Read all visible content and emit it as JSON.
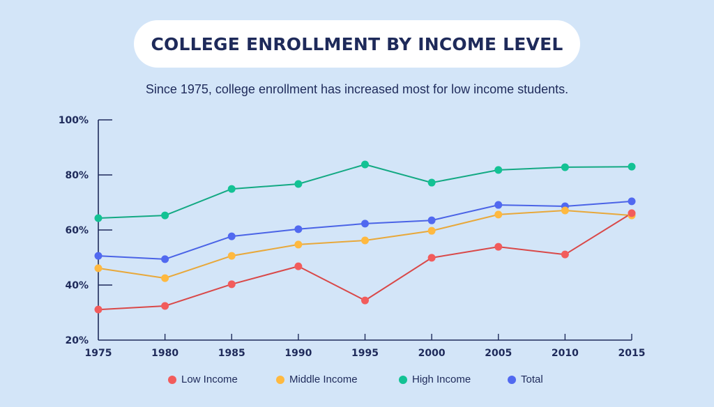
{
  "header": {
    "title": "COLLEGE ENROLLMENT BY INCOME LEVEL",
    "subtitle": "Since 1975, college enrollment has increased most for low income students."
  },
  "chart_data": {
    "type": "line",
    "title": "COLLEGE ENROLLMENT BY INCOME LEVEL",
    "subtitle": "Since 1975, college enrollment has increased most for low income students.",
    "xlabel": "",
    "ylabel": "",
    "x": [
      1975,
      1980,
      1985,
      1990,
      1995,
      2000,
      2005,
      2010,
      2015
    ],
    "x_tick_labels": [
      "1975",
      "1980",
      "1985",
      "1990",
      "1995",
      "2000",
      "2005",
      "2010",
      "2015"
    ],
    "y_ticks": [
      20,
      40,
      60,
      80,
      100
    ],
    "y_tick_labels": [
      "20%",
      "40%",
      "60%",
      "80%",
      "100%"
    ],
    "ylim": [
      20,
      100
    ],
    "grid": false,
    "legend_position": "bottom",
    "series": [
      {
        "name": "Low Income",
        "color": "#f25c5c",
        "line_color": "#d94848",
        "values": [
          31.1,
          32.4,
          40.3,
          46.8,
          34.4,
          49.9,
          53.9,
          51.1,
          66.1
        ]
      },
      {
        "name": "Middle Income",
        "color": "#ffb940",
        "line_color": "#e8a83a",
        "values": [
          46.1,
          42.5,
          50.6,
          54.7,
          56.2,
          59.7,
          65.6,
          67.1,
          65.3
        ]
      },
      {
        "name": "High Income",
        "color": "#13c294",
        "line_color": "#13a983",
        "values": [
          64.3,
          65.3,
          74.9,
          76.7,
          83.8,
          77.2,
          81.8,
          82.8,
          83.0
        ]
      },
      {
        "name": "Total",
        "color": "#5169f0",
        "line_color": "#4a63e6",
        "values": [
          50.6,
          49.4,
          57.7,
          60.3,
          62.3,
          63.5,
          69.1,
          68.6,
          70.4
        ]
      }
    ]
  },
  "legend": {
    "items": [
      {
        "label": "Low Income",
        "color": "#f25c5c"
      },
      {
        "label": "Middle Income",
        "color": "#ffb940"
      },
      {
        "label": "High Income",
        "color": "#13c294"
      },
      {
        "label": "Total",
        "color": "#5169f0"
      }
    ]
  },
  "colors": {
    "background": "#d3e5f8",
    "axis": "#1e2a5a",
    "text": "#1e2a5a"
  }
}
